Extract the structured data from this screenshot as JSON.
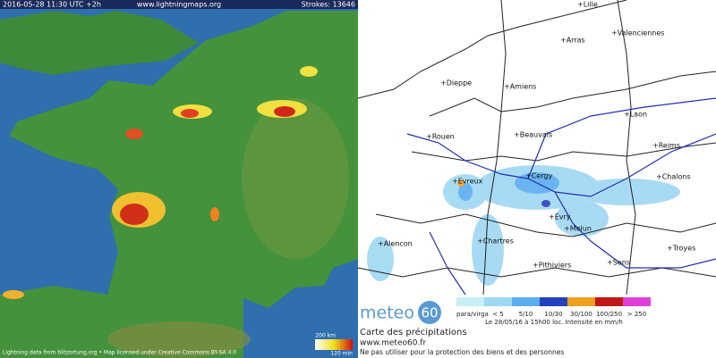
{
  "lightning_map": {
    "timestamp": "2016-05-28 11:30 UTC +2h",
    "site": "www.lightningmaps.org",
    "strokes": "Strokes: 13646",
    "footer": "Lightning data from blitzortung.org • Map licensed under Creative Commons BY-SA 4.0",
    "scale_distance": "200 km",
    "scale_time": "120 min"
  },
  "precip_map": {
    "cities": [
      "+Lille",
      "+Arras",
      "+Valenciennes",
      "+Dieppe",
      "+Amiens",
      "+Laon",
      "+Beauvais",
      "+Rouen",
      "+Reims",
      "+Evreux",
      "+Cergy",
      "+Chalons",
      "+Evry",
      "+Melun",
      "+Alencon",
      "+Chartres",
      "+Troyes",
      "+Sens",
      "+Pithiviers"
    ],
    "logo": {
      "word": "meteo",
      "number": "60"
    },
    "legend": [
      "para/virga",
      "< 5",
      "5/10",
      "10/30",
      "30/100",
      "100/250",
      "> 250"
    ],
    "legend_colors": [
      "#c8eef8",
      "#9fd8f2",
      "#5aaef0",
      "#2440c0",
      "#f0a020",
      "#c01818",
      "#e040d8"
    ],
    "date_note": "Le 28/05/16 à 15h00 loc. Intensité en mm/h",
    "title": "Carte des précipitations",
    "url": "www.meteo60.fr",
    "disclaimer": "Ne pas utiliser pour la protection des biens et des personnes"
  }
}
